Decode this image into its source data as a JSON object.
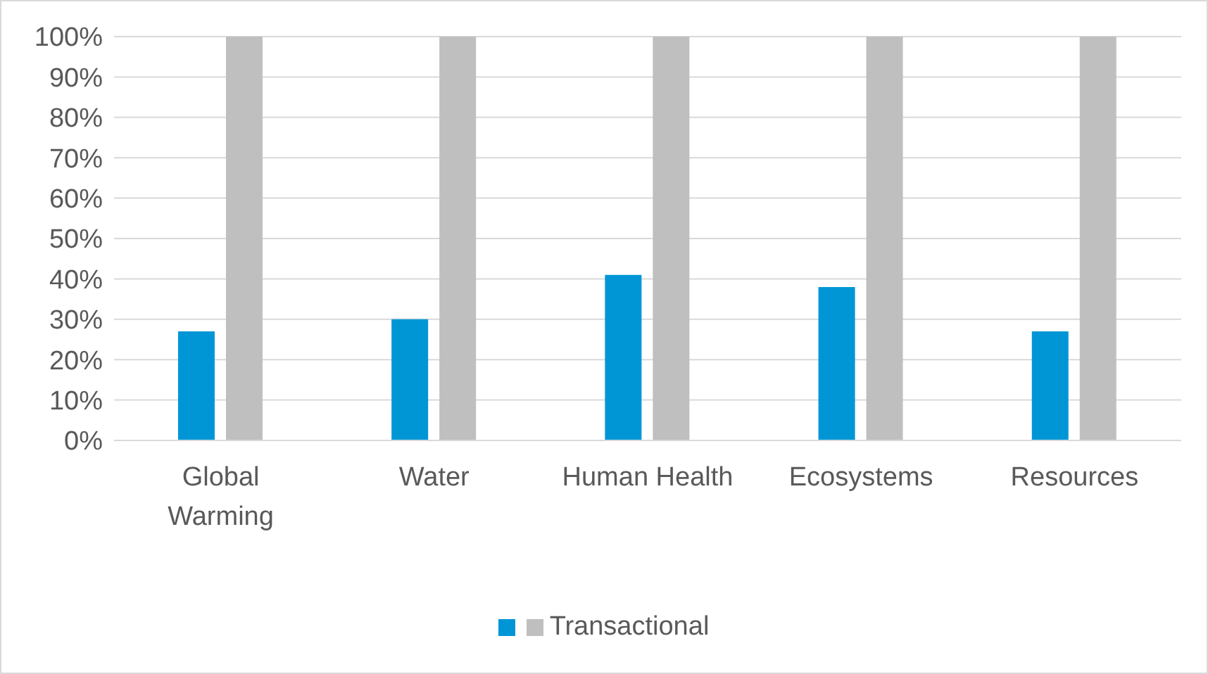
{
  "chart_data": {
    "type": "bar",
    "categories": [
      "Global Warming",
      "Water",
      "Human Health",
      "Ecosystems",
      "Resources"
    ],
    "series": [
      {
        "color": "#0096d6",
        "values": [
          27,
          30,
          41,
          38,
          27
        ]
      },
      {
        "name": "Transactional",
        "color": "#bfbfbf",
        "values": [
          100,
          100,
          100,
          100,
          100
        ]
      }
    ],
    "ylim": [
      0,
      100
    ],
    "yticks": [
      {
        "value": 0,
        "label": "0%"
      },
      {
        "value": 10,
        "label": "10%"
      },
      {
        "value": 20,
        "label": "20%"
      },
      {
        "value": 30,
        "label": "30%"
      },
      {
        "value": 40,
        "label": "40%"
      },
      {
        "value": 50,
        "label": "50%"
      },
      {
        "value": 60,
        "label": "60%"
      },
      {
        "value": 70,
        "label": "70%"
      },
      {
        "value": 80,
        "label": "80%"
      },
      {
        "value": 90,
        "label": "90%"
      },
      {
        "value": 100,
        "label": "100%"
      }
    ],
    "grid": "y",
    "legend": "bottom"
  }
}
